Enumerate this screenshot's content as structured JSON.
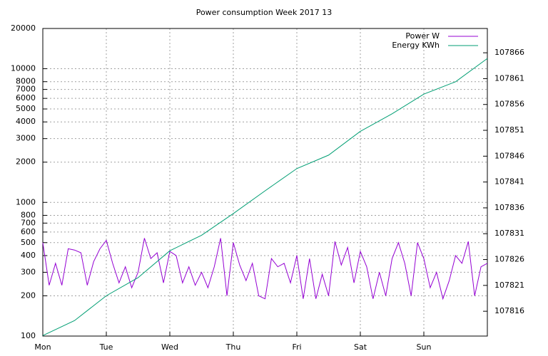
{
  "chart_data": {
    "type": "line",
    "title": "Power consumption Week 2017 13",
    "xlim": [
      0,
      7
    ],
    "xticks": [
      {
        "value": 0,
        "label": "Mon"
      },
      {
        "value": 1,
        "label": "Tue"
      },
      {
        "value": 2,
        "label": "Wed"
      },
      {
        "value": 3,
        "label": "Thu"
      },
      {
        "value": 4,
        "label": "Fri"
      },
      {
        "value": 5,
        "label": "Sat"
      },
      {
        "value": 6,
        "label": "Sun"
      }
    ],
    "ylim": [
      100,
      20000
    ],
    "ylog": true,
    "yticks": [
      100,
      200,
      300,
      400,
      500,
      600,
      700,
      800,
      1000,
      2000,
      3000,
      4000,
      5000,
      6000,
      7000,
      8000,
      10000,
      20000
    ],
    "y2lim": [
      107811.2,
      107870.7
    ],
    "y2ticks": [
      107816,
      107821,
      107826,
      107831,
      107836,
      107841,
      107846,
      107851,
      107856,
      107861,
      107866
    ],
    "grid": true,
    "legend": "top-right",
    "series": [
      {
        "name": "Power W",
        "color": "#9400d3",
        "x": [
          0,
          0.1,
          0.2,
          0.3,
          0.4,
          0.5,
          0.6,
          0.7,
          0.8,
          0.9,
          1,
          1.1,
          1.2,
          1.3,
          1.4,
          1.5,
          1.6,
          1.7,
          1.8,
          1.9,
          2,
          2.1,
          2.2,
          2.3,
          2.4,
          2.5,
          2.6,
          2.7,
          2.8,
          2.9,
          3,
          3.1,
          3.2,
          3.3,
          3.4,
          3.5,
          3.6,
          3.7,
          3.8,
          3.9,
          4,
          4.1,
          4.2,
          4.3,
          4.4,
          4.5,
          4.6,
          4.7,
          4.8,
          4.9,
          5,
          5.1,
          5.2,
          5.3,
          5.4,
          5.5,
          5.6,
          5.7,
          5.8,
          5.9,
          6,
          6.1,
          6.2,
          6.3,
          6.4,
          6.5,
          6.6,
          6.7,
          6.8,
          6.9,
          7
        ],
        "values": [
          500,
          240,
          350,
          240,
          450,
          440,
          420,
          240,
          360,
          450,
          520,
          350,
          250,
          330,
          230,
          300,
          540,
          380,
          420,
          250,
          430,
          400,
          250,
          330,
          240,
          300,
          230,
          330,
          540,
          200,
          500,
          340,
          260,
          350,
          200,
          190,
          380,
          330,
          350,
          250,
          400,
          190,
          380,
          190,
          290,
          200,
          510,
          340,
          460,
          250,
          430,
          330,
          190,
          300,
          200,
          380,
          500,
          350,
          200,
          500,
          380,
          230,
          300,
          190,
          260,
          400,
          350,
          510,
          200,
          330,
          350
        ]
      },
      {
        "name": "Energy KWh",
        "color": "#009e73",
        "axis": "y2",
        "x": [
          0,
          0.5,
          1,
          1.5,
          2,
          2.5,
          3,
          3.5,
          4,
          4.5,
          5,
          5.5,
          6,
          6.5,
          7
        ],
        "values": [
          107811.3,
          107814.2,
          107819.0,
          107822.5,
          107827.7,
          107830.7,
          107834.9,
          107839.3,
          107843.6,
          107846.2,
          107850.8,
          107854.2,
          107858.0,
          107860.4,
          107864.9
        ]
      }
    ]
  }
}
